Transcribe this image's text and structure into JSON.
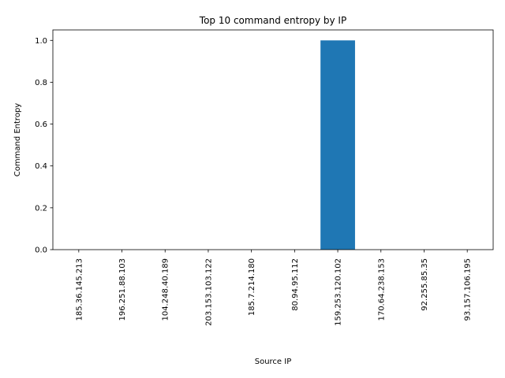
{
  "chart_data": {
    "type": "bar",
    "title": "Top 10 command entropy by IP",
    "xlabel": "Source IP",
    "ylabel": "Command Entropy",
    "categories": [
      "185.36.145.213",
      "196.251.88.103",
      "104.248.40.189",
      "203.153.103.122",
      "185.7.214.180",
      "80.94.95.112",
      "159.253.120.102",
      "170.64.238.153",
      "92.255.85.35",
      "93.157.106.195"
    ],
    "values": [
      0,
      0,
      0,
      0,
      0,
      0,
      1.0,
      0,
      0,
      0
    ],
    "yticks": [
      "0.0",
      "0.2",
      "0.4",
      "0.6",
      "0.8",
      "1.0"
    ],
    "ylim": [
      0,
      1.05
    ],
    "grid": false,
    "bar_color": "#1f77b4"
  }
}
